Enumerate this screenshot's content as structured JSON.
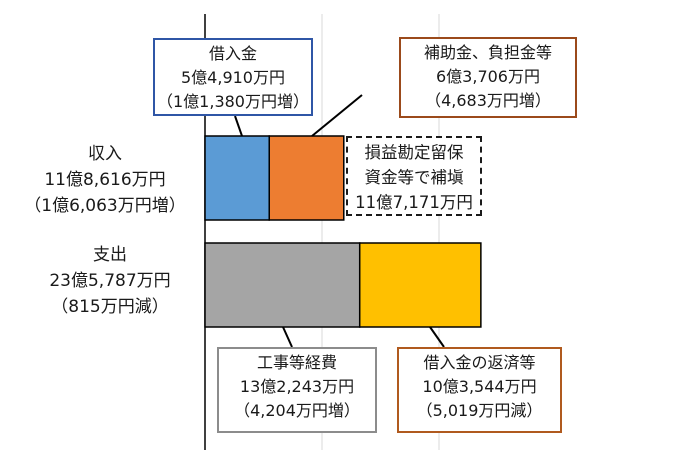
{
  "colors": {
    "borrow": "#5b9bd5",
    "subsidy": "#ed7d31",
    "works": "#a5a5a5",
    "repay": "#ffc000",
    "borrow_border": "#2f56a6",
    "subsidy_border": "#9b4a1b",
    "works_border": "#8c8c8c",
    "repay_border": "#b05a1e"
  },
  "chart_data": {
    "type": "bar",
    "orientation": "horizontal",
    "stacked": true,
    "categories": [
      "収入",
      "支出"
    ],
    "series": [
      {
        "key": "borrow",
        "values": [
          54910,
          0
        ]
      },
      {
        "key": "subsidy",
        "values": [
          63706,
          0
        ]
      },
      {
        "key": "works",
        "values": [
          0,
          132243
        ]
      },
      {
        "key": "repay",
        "values": [
          0,
          103544
        ]
      }
    ],
    "unit": "万円",
    "xlim": [
      0,
      270000
    ],
    "grid": true,
    "category_labels": [
      {
        "name": "収入",
        "amount": "11億8,616万円",
        "change": "（1億6,063万円増）"
      },
      {
        "name": "支出",
        "amount": "23億5,787万円",
        "change": "（815万円減）"
      }
    ],
    "annotations": {
      "borrow": {
        "title": "借入金",
        "amount": "5億4,910万円",
        "change": "（1億1,380万円増）"
      },
      "subsidy": {
        "title": "補助金、負担金等",
        "amount": "6億3,706万円",
        "change": "（4,683万円増）"
      },
      "reserve": {
        "line1": "損益勘定留保",
        "line2": "資金等で補塡",
        "amount": "11億7,171万円"
      },
      "works": {
        "title": "工事等経費",
        "amount": "13億2,243万円",
        "change": "（4,204万円増）"
      },
      "repay": {
        "title": "借入金の返済等",
        "amount": "10億3,544万円",
        "change": "（5,019万円減）"
      }
    }
  }
}
